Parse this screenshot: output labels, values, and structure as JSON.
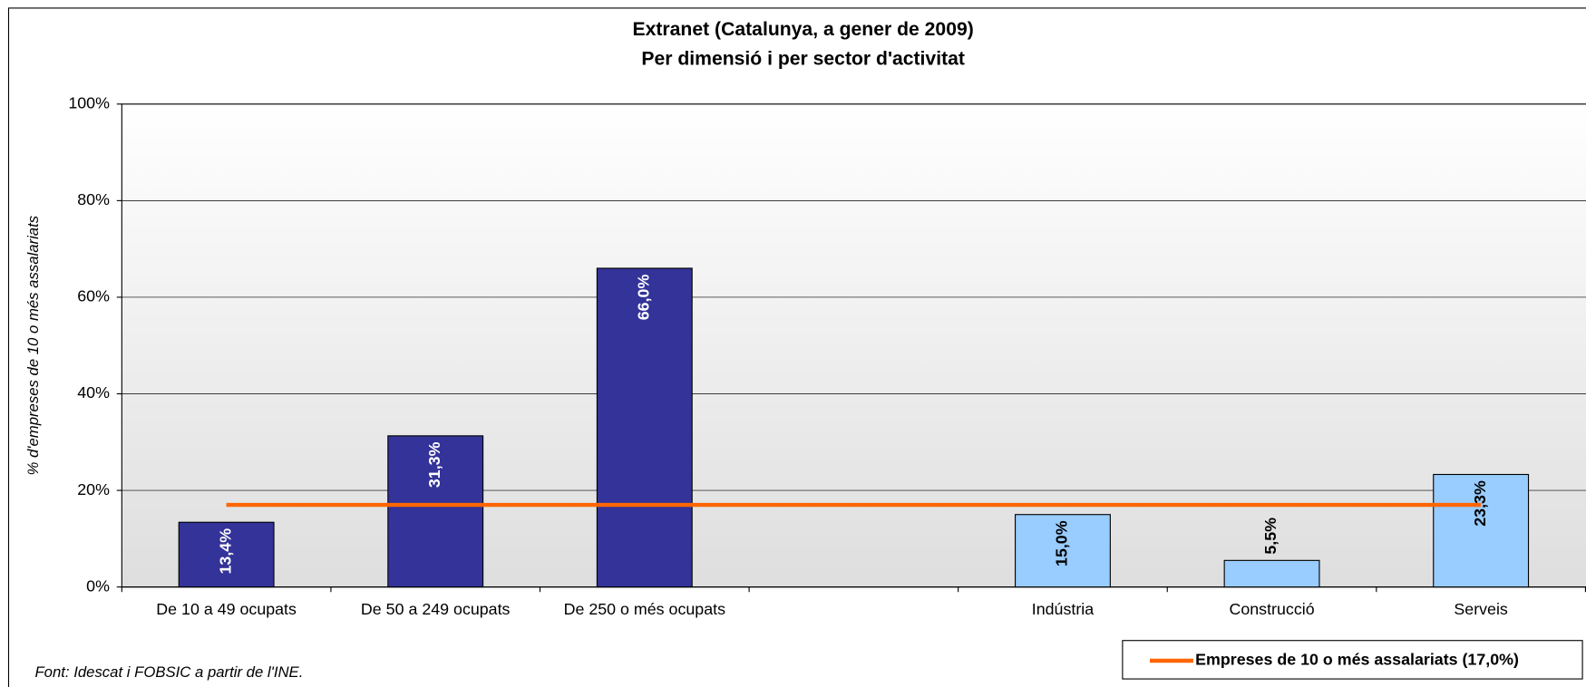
{
  "chart_data": {
    "type": "bar",
    "title": "Extranet (Catalunya, a gener de 2009)",
    "subtitle": "Per dimensió i per sector d'activitat",
    "y_label": "% d'empreses de 10 o més assalariats",
    "source": "Font: Idescat i FOBSIC a partir de l'INE.",
    "categories": [
      "De 10 a 49 ocupats",
      "De 50 a 249 ocupats",
      "De 250 o més ocupats",
      null,
      "Indústria",
      "Construcció",
      "Serveis"
    ],
    "values": [
      13.4,
      31.3,
      66.0,
      null,
      15.0,
      5.5,
      23.3
    ],
    "value_labels": [
      "13,4%",
      "31,3%",
      "66,0%",
      null,
      "15,0%",
      "5,5%",
      "23,3%"
    ],
    "colors": [
      "#333399",
      "#333399",
      "#333399",
      null,
      "#99ccff",
      "#99ccff",
      "#99ccff"
    ],
    "reference_line": {
      "value": 17.0,
      "label": "Empreses de 10 o més assalariats (17,0%)",
      "color": "#ff6600"
    },
    "ylim": [
      0,
      100
    ],
    "yticks": [
      {
        "value": 0,
        "label": "0%"
      },
      {
        "value": 20,
        "label": "20%"
      },
      {
        "value": 40,
        "label": "40%"
      },
      {
        "value": 60,
        "label": "60%"
      },
      {
        "value": 80,
        "label": "80%"
      },
      {
        "value": 100,
        "label": "100%"
      }
    ],
    "grid": true,
    "legend": "bottom-right"
  }
}
